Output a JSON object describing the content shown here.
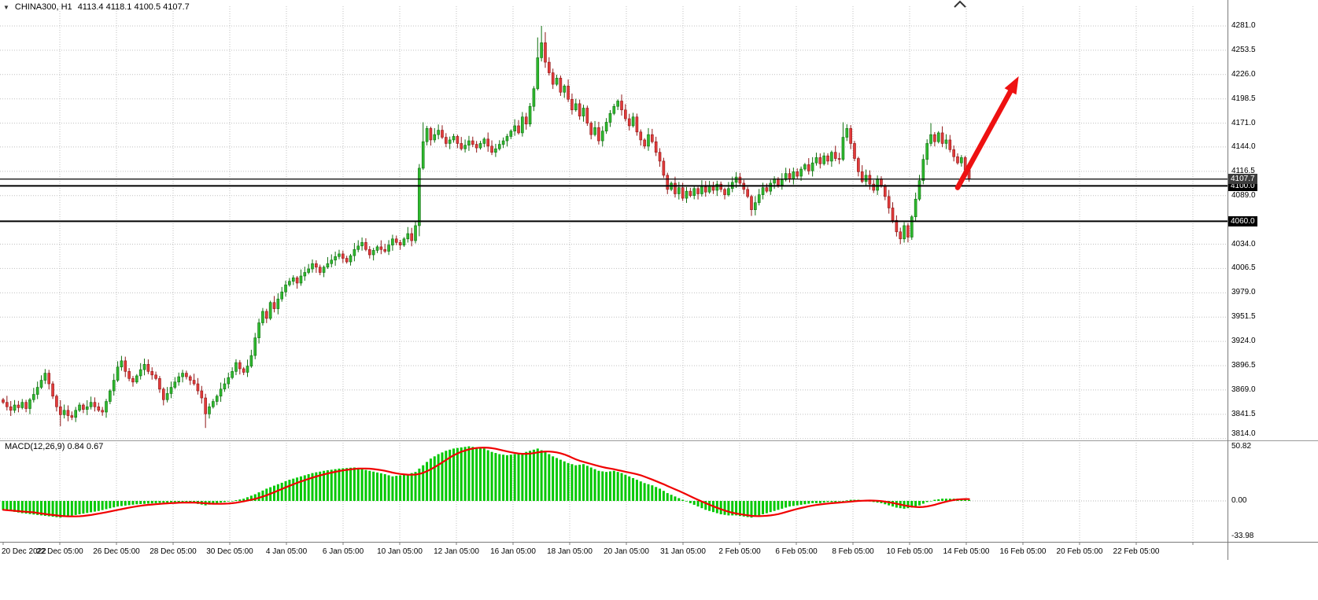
{
  "header": {
    "symbol": "CHINA300, H1",
    "quote_ohlc": "4113.4 4118.1 4100.5 4107.7"
  },
  "price_axis": {
    "badges": {
      "current": "4107.7",
      "line1": "4100.0",
      "line2": "4060.0"
    }
  },
  "time_axis": {
    "labels": [
      "20 Dec 2022",
      "22 Dec 05:00",
      "26 Dec 05:00",
      "28 Dec 05:00",
      "30 Dec 05:00",
      "4 Jan 05:00",
      "6 Jan 05:00",
      "10 Jan 05:00",
      "12 Jan 05:00",
      "16 Jan 05:00",
      "18 Jan 05:00",
      "20 Jan 05:00",
      "31 Jan 05:00",
      "2 Feb 05:00",
      "6 Feb 05:00",
      "8 Feb 05:00",
      "10 Feb 05:00",
      "14 Feb 05:00",
      "16 Feb 05:00",
      "20 Feb 05:00",
      "22 Feb 05:00"
    ]
  },
  "macd_panel": {
    "label": "MACD(12,26,9) 0.84 0.67",
    "axis": [
      "50.82",
      "0.00",
      "-33.98"
    ]
  },
  "chart_data": [
    {
      "type": "candlestick",
      "title": "CHINA300, H1",
      "symbol": "CHINA300",
      "timeframe": "H1",
      "current_ohlc": {
        "open": 4113.4,
        "high": 4118.1,
        "low": 4100.5,
        "close": 4107.7
      },
      "ylim": [
        3814.0,
        4281.0
      ],
      "grid": "dotted",
      "y_ticks": [
        4281.0,
        4253.5,
        4226.0,
        4198.5,
        4171.0,
        4144.0,
        4116.5,
        4089.0,
        4034.0,
        4006.5,
        3979.0,
        3951.5,
        3924.0,
        3896.5,
        3869.0,
        3841.5,
        3814.0
      ],
      "x_labels": [
        "20 Dec 2022",
        "22 Dec 05:00",
        "26 Dec 05:00",
        "28 Dec 05:00",
        "30 Dec 05:00",
        "4 Jan 05:00",
        "6 Jan 05:00",
        "10 Jan 05:00",
        "12 Jan 05:00",
        "16 Jan 05:00",
        "18 Jan 05:00",
        "20 Jan 05:00",
        "31 Jan 05:00",
        "2 Feb 05:00",
        "6 Feb 05:00",
        "8 Feb 05:00",
        "10 Feb 05:00",
        "14 Feb 05:00",
        "16 Feb 05:00",
        "20 Feb 05:00",
        "22 Feb 05:00"
      ],
      "closes": [
        3855,
        3850,
        3846,
        3852,
        3849,
        3855,
        3848,
        3858,
        3864,
        3872,
        3880,
        3888,
        3876,
        3862,
        3850,
        3841,
        3846,
        3840,
        3838,
        3846,
        3852,
        3847,
        3850,
        3855,
        3850,
        3846,
        3844,
        3856,
        3868,
        3880,
        3895,
        3902,
        3890,
        3882,
        3878,
        3885,
        3892,
        3898,
        3890,
        3886,
        3882,
        3870,
        3858,
        3865,
        3872,
        3878,
        3884,
        3888,
        3884,
        3880,
        3876,
        3868,
        3860,
        3842,
        3850,
        3856,
        3862,
        3870,
        3876,
        3883,
        3890,
        3900,
        3893,
        3889,
        3896,
        3908,
        3928,
        3945,
        3958,
        3950,
        3968,
        3961,
        3972,
        3980,
        3988,
        3992,
        3996,
        3990,
        3998,
        4002,
        4006,
        4012,
        4008,
        4002,
        4008,
        4012,
        4016,
        4020,
        4023,
        4018,
        4014,
        4021,
        4028,
        4032,
        4036,
        4028,
        4022,
        4027,
        4031,
        4028,
        4026,
        4033,
        4040,
        4036,
        4033,
        4040,
        4046,
        4038,
        4055,
        4120,
        4150,
        4165,
        4152,
        4158,
        4163,
        4155,
        4148,
        4152,
        4156,
        4148,
        4142,
        4146,
        4151,
        4147,
        4143,
        4148,
        4153,
        4145,
        4138,
        4142,
        4147,
        4151,
        4156,
        4162,
        4168,
        4160,
        4178,
        4170,
        4190,
        4210,
        4245,
        4262,
        4240,
        4228,
        4215,
        4222,
        4206,
        4213,
        4198,
        4186,
        4193,
        4179,
        4188,
        4171,
        4158,
        4166,
        4151,
        4162,
        4172,
        4182,
        4190,
        4196,
        4186,
        4176,
        4168,
        4178,
        4161,
        4152,
        4145,
        4158,
        4150,
        4138,
        4128,
        4112,
        4096,
        4103,
        4091,
        4098,
        4086,
        4094,
        4089,
        4097,
        4091,
        4099,
        4093,
        4100,
        4095,
        4102,
        4096,
        4090,
        4097,
        4104,
        4110,
        4103,
        4096,
        4088,
        4073,
        4081,
        4090,
        4098,
        4094,
        4103,
        4108,
        4101,
        4107,
        4114,
        4108,
        4116,
        4111,
        4119,
        4124,
        4117,
        4126,
        4132,
        4125,
        4134,
        4128,
        4138,
        4131,
        4130,
        4155,
        4165,
        4148,
        4131,
        4116,
        4105,
        4112,
        4102,
        4095,
        4108,
        4100,
        4088,
        4075,
        4061,
        4048,
        4040,
        4055,
        4042,
        4065,
        4085,
        4106,
        4130,
        4148,
        4158,
        4150,
        4160,
        4148,
        4152,
        4141,
        4133,
        4126,
        4132,
        4118,
        4107.7
      ],
      "extremes": {
        "15": {
          "low": 3828
        },
        "53": {
          "low": 3826
        },
        "109": {
          "low": 4043
        },
        "110": {
          "high": 4172
        },
        "140": {
          "high": 4268
        },
        "141": {
          "high": 4281
        },
        "142": {
          "high": 4274
        },
        "196": {
          "low": 4066
        },
        "220": {
          "high": 4172
        },
        "235": {
          "low": 4034
        },
        "237": {
          "low": 4036
        },
        "243": {
          "high": 4171
        }
      },
      "hlines": [
        {
          "price": 4107.7,
          "label": "4107.7",
          "width": 1.2,
          "role": "current-price-line"
        },
        {
          "price": 4100.0,
          "label": "4100.0",
          "width": 2,
          "role": "drawn-horizontal-line"
        },
        {
          "price": 4060.0,
          "label": "4060.0",
          "width": 2,
          "role": "drawn-horizontal-line"
        }
      ],
      "annotations": [
        {
          "type": "arrow",
          "color": "#ee1111",
          "from": {
            "bar": 250,
            "price": 4098
          },
          "to": {
            "bar": 266,
            "price": 4224
          }
        }
      ],
      "colors": {
        "bull_fill": "#2fb92f",
        "bull_stroke": "#0e6f0e",
        "bear_fill": "#e23b3b",
        "bear_stroke": "#8f1717",
        "grid": "#c0c0c0",
        "hline": "#000000"
      }
    },
    {
      "type": "bar",
      "name": "MACD(12,26,9)",
      "current_values": {
        "macd": 0.84,
        "signal": 0.67
      },
      "ylim": [
        -33.98,
        50.82
      ],
      "y_ticks": [
        50.82,
        0.0,
        -33.98
      ],
      "legend_position": "top-left",
      "histogram": [
        -8,
        -8.6,
        -9.2,
        -9.8,
        -10.4,
        -11,
        -11.4,
        -11.8,
        -12.2,
        -12.6,
        -13,
        -13.4,
        -13.8,
        -14.2,
        -14.6,
        -15,
        -14.4,
        -13.8,
        -13.2,
        -12.6,
        -12,
        -11.4,
        -10.8,
        -10.2,
        -9.6,
        -9,
        -8.2,
        -7.4,
        -6.6,
        -5.8,
        -5,
        -4.6,
        -4.2,
        -3.8,
        -3.4,
        -3,
        -2.8,
        -2.6,
        -2.4,
        -2.2,
        -2,
        -1.8,
        -1.6,
        -1.4,
        -1.2,
        -1,
        -1.2,
        -1.4,
        -1.6,
        -1.8,
        -2,
        -2.7,
        -3.3,
        -4,
        -3.3,
        -2.7,
        -2,
        -1.5,
        -1,
        -0.5,
        0,
        0.7,
        1.3,
        2,
        3.3,
        4.7,
        6,
        7.7,
        9.3,
        11,
        12.3,
        13.7,
        15,
        16.3,
        17.7,
        19,
        20,
        21,
        22,
        23,
        24,
        25,
        25.7,
        26.3,
        27,
        27.5,
        28,
        28.5,
        29,
        29.3,
        29.5,
        29.8,
        30,
        29.3,
        28.5,
        27.8,
        27,
        26.3,
        25.5,
        24.8,
        24,
        23,
        22,
        22.5,
        23,
        23.5,
        24,
        25,
        26,
        29,
        32,
        35,
        38,
        40,
        42,
        43.5,
        45,
        46,
        47,
        47.5,
        48,
        48.5,
        49,
        48.5,
        48,
        47.5,
        47,
        45.5,
        44,
        43,
        42,
        41.5,
        41,
        41.5,
        42,
        42.5,
        43,
        44,
        45,
        46,
        47,
        45.5,
        44,
        42,
        40,
        38.5,
        37,
        35.5,
        34,
        33,
        32,
        32.5,
        33,
        31.5,
        30,
        28.5,
        27,
        26.5,
        26,
        26.5,
        27,
        26,
        25,
        23.5,
        22,
        20.5,
        19,
        17.5,
        16,
        15,
        14,
        12.5,
        11,
        9,
        7,
        5.5,
        4,
        2.5,
        1,
        -0.5,
        -2,
        -3.5,
        -5,
        -6.5,
        -8,
        -9,
        -10,
        -11,
        -12,
        -12.5,
        -13,
        -13,
        -13,
        -13.5,
        -14,
        -14.5,
        -15,
        -14,
        -13,
        -12,
        -11,
        -10,
        -9,
        -8,
        -7,
        -6,
        -5,
        -4.5,
        -4,
        -3.5,
        -3,
        -2.5,
        -2,
        -2,
        -2,
        -1.5,
        -1,
        -1,
        -1,
        -0.5,
        0,
        0.5,
        1,
        1,
        1,
        0.5,
        0,
        -0.5,
        -1,
        -1.5,
        -2,
        -3,
        -4,
        -5,
        -6,
        -6.5,
        -7,
        -6.5,
        -6,
        -5,
        -4,
        -2.5,
        -1,
        0,
        1,
        1.5,
        2,
        2,
        2,
        2,
        2,
        1.5,
        1,
        0.84
      ],
      "signal_derivation": "SMA-9 of histogram",
      "colors": {
        "histogram": "#00c800",
        "signal": "#f00000"
      }
    }
  ]
}
